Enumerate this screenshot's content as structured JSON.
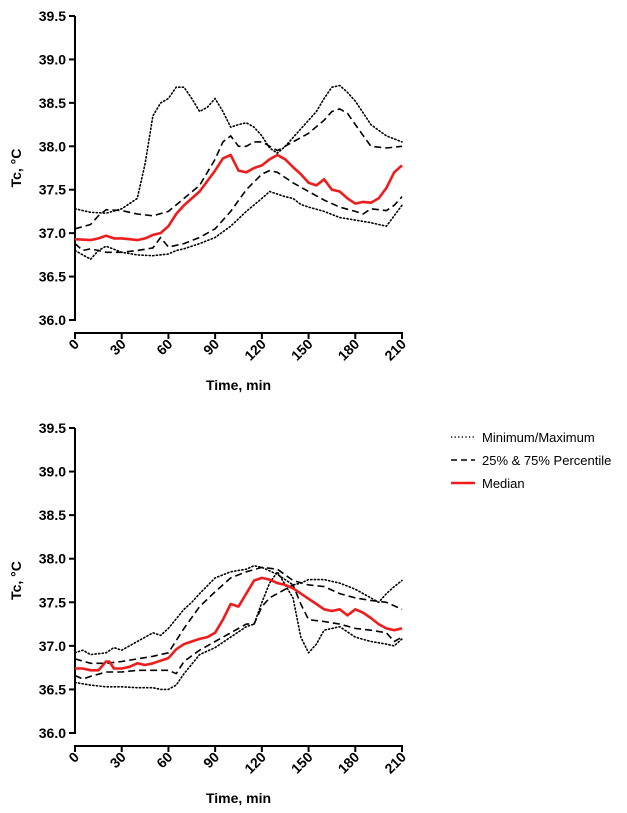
{
  "chart_data": [
    {
      "type": "line",
      "xlabel": "Time, min",
      "ylabel": "Tc, °C",
      "xlim": [
        0,
        210
      ],
      "ylim": [
        36.0,
        39.5
      ],
      "xticks": [
        "0",
        "30",
        "60",
        "90",
        "120",
        "150",
        "180",
        "210"
      ],
      "yticks": [
        "36.0",
        "36.5",
        "37.0",
        "37.5",
        "38.0",
        "38.5",
        "39.0",
        "39.5"
      ],
      "grid": false,
      "series": [
        {
          "style": "dotted",
          "color": "#000000",
          "x": [
            0,
            10,
            20,
            30,
            40,
            45,
            50,
            55,
            60,
            65,
            70,
            75,
            80,
            85,
            90,
            95,
            100,
            105,
            110,
            115,
            120,
            125,
            130,
            135,
            140,
            145,
            150,
            155,
            160,
            165,
            170,
            175,
            180,
            190,
            200,
            210
          ],
          "y": [
            37.28,
            37.24,
            37.23,
            37.28,
            37.4,
            37.8,
            38.35,
            38.5,
            38.55,
            38.68,
            38.68,
            38.55,
            38.4,
            38.45,
            38.55,
            38.4,
            38.22,
            38.25,
            38.27,
            38.22,
            38.12,
            37.98,
            37.92,
            38.0,
            38.1,
            38.2,
            38.3,
            38.4,
            38.55,
            38.68,
            38.7,
            38.62,
            38.52,
            38.25,
            38.12,
            38.05
          ]
        },
        {
          "style": "dotted",
          "color": "#000000",
          "x": [
            0,
            5,
            10,
            15,
            20,
            30,
            40,
            50,
            60,
            65,
            70,
            80,
            90,
            100,
            110,
            120,
            125,
            130,
            135,
            140,
            145,
            150,
            160,
            170,
            180,
            190,
            200,
            210
          ],
          "y": [
            36.8,
            36.75,
            36.7,
            36.8,
            36.85,
            36.78,
            36.75,
            36.74,
            36.76,
            36.8,
            36.82,
            36.88,
            36.95,
            37.08,
            37.25,
            37.4,
            37.48,
            37.45,
            37.42,
            37.4,
            37.33,
            37.3,
            37.25,
            37.18,
            37.15,
            37.12,
            37.08,
            37.32
          ]
        },
        {
          "style": "dashed",
          "color": "#000000",
          "x": [
            0,
            10,
            15,
            20,
            30,
            40,
            50,
            60,
            70,
            80,
            90,
            95,
            100,
            105,
            110,
            115,
            120,
            130,
            140,
            150,
            160,
            165,
            170,
            175,
            180,
            190,
            200,
            210
          ],
          "y": [
            37.05,
            37.1,
            37.2,
            37.27,
            37.26,
            37.22,
            37.2,
            37.25,
            37.4,
            37.55,
            37.85,
            38.05,
            38.12,
            38.0,
            38.0,
            38.05,
            38.05,
            37.95,
            38.05,
            38.15,
            38.3,
            38.4,
            38.43,
            38.38,
            38.25,
            38.0,
            37.98,
            38.0
          ]
        },
        {
          "style": "dashed",
          "color": "#000000",
          "x": [
            0,
            5,
            10,
            20,
            30,
            40,
            50,
            55,
            60,
            70,
            80,
            90,
            100,
            110,
            120,
            125,
            130,
            140,
            150,
            160,
            170,
            180,
            185,
            190,
            200,
            205,
            210
          ],
          "y": [
            36.88,
            36.8,
            36.82,
            36.78,
            36.78,
            36.8,
            36.83,
            36.95,
            36.84,
            36.88,
            36.95,
            37.05,
            37.25,
            37.5,
            37.68,
            37.72,
            37.7,
            37.58,
            37.48,
            37.38,
            37.3,
            37.25,
            37.22,
            37.28,
            37.26,
            37.32,
            37.42
          ]
        },
        {
          "style": "solid",
          "color": "#ee1d1d",
          "name": "Median",
          "x": [
            0,
            10,
            15,
            20,
            25,
            30,
            40,
            45,
            50,
            55,
            60,
            65,
            70,
            75,
            80,
            85,
            90,
            95,
            100,
            105,
            110,
            115,
            120,
            125,
            130,
            135,
            140,
            145,
            150,
            155,
            160,
            165,
            170,
            175,
            180,
            185,
            190,
            195,
            200,
            205,
            210
          ],
          "y": [
            36.93,
            36.92,
            36.94,
            36.97,
            36.94,
            36.94,
            36.92,
            36.94,
            36.98,
            37.0,
            37.08,
            37.22,
            37.32,
            37.4,
            37.48,
            37.6,
            37.72,
            37.86,
            37.9,
            37.72,
            37.7,
            37.75,
            37.78,
            37.85,
            37.9,
            37.85,
            37.76,
            37.68,
            37.58,
            37.55,
            37.62,
            37.5,
            37.48,
            37.4,
            37.34,
            37.36,
            37.35,
            37.4,
            37.52,
            37.7,
            37.78
          ]
        }
      ]
    },
    {
      "type": "line",
      "xlabel": "Time, min",
      "ylabel": "Tc, °C",
      "xlim": [
        0,
        210
      ],
      "ylim": [
        36.0,
        39.5
      ],
      "xticks": [
        "0",
        "30",
        "60",
        "90",
        "120",
        "150",
        "180",
        "210"
      ],
      "yticks": [
        "36.0",
        "36.5",
        "37.0",
        "37.5",
        "38.0",
        "38.5",
        "39.0",
        "39.5"
      ],
      "grid": false,
      "legend": {
        "position": "right",
        "entries": [
          {
            "label": "Minimum/Maximum",
            "style": "dotted",
            "color": "#000000"
          },
          {
            "label": "25% & 75% Percentile",
            "style": "dashed",
            "color": "#000000"
          },
          {
            "label": "Median",
            "style": "solid",
            "color": "#ee1d1d"
          }
        ]
      },
      "series": [
        {
          "style": "dotted",
          "color": "#000000",
          "x": [
            0,
            5,
            10,
            20,
            25,
            30,
            40,
            50,
            55,
            60,
            70,
            75,
            80,
            90,
            100,
            110,
            115,
            120,
            130,
            140,
            145,
            150,
            160,
            170,
            180,
            190,
            195,
            200,
            205,
            210
          ],
          "y": [
            36.92,
            36.95,
            36.9,
            36.92,
            36.98,
            36.95,
            37.05,
            37.15,
            37.12,
            37.2,
            37.42,
            37.5,
            37.6,
            37.78,
            37.85,
            37.88,
            37.92,
            37.9,
            37.82,
            37.7,
            37.72,
            37.76,
            37.76,
            37.72,
            37.65,
            37.55,
            37.5,
            37.6,
            37.68,
            37.75
          ]
        },
        {
          "style": "dotted",
          "color": "#000000",
          "x": [
            0,
            10,
            20,
            30,
            40,
            50,
            55,
            60,
            65,
            70,
            80,
            90,
            100,
            110,
            115,
            120,
            125,
            130,
            140,
            145,
            150,
            155,
            160,
            170,
            180,
            190,
            200,
            205,
            210
          ],
          "y": [
            36.58,
            36.55,
            36.53,
            36.53,
            36.52,
            36.52,
            36.5,
            36.5,
            36.55,
            36.68,
            36.9,
            36.98,
            37.1,
            37.22,
            37.25,
            37.5,
            37.72,
            37.85,
            37.55,
            37.1,
            36.92,
            37.02,
            37.18,
            37.22,
            37.1,
            37.05,
            37.02,
            37.0,
            37.08
          ]
        },
        {
          "style": "dashed",
          "color": "#000000",
          "x": [
            0,
            10,
            20,
            30,
            40,
            50,
            60,
            70,
            80,
            90,
            100,
            110,
            120,
            130,
            140,
            150,
            160,
            170,
            180,
            190,
            200,
            210
          ],
          "y": [
            36.85,
            36.8,
            36.8,
            36.82,
            36.85,
            36.88,
            36.92,
            37.2,
            37.45,
            37.62,
            37.78,
            37.85,
            37.9,
            37.88,
            37.75,
            37.7,
            37.68,
            37.6,
            37.55,
            37.52,
            37.5,
            37.42
          ]
        },
        {
          "style": "dashed",
          "color": "#000000",
          "x": [
            0,
            5,
            10,
            20,
            30,
            40,
            50,
            60,
            65,
            70,
            80,
            90,
            100,
            110,
            115,
            120,
            125,
            130,
            140,
            145,
            150,
            160,
            170,
            180,
            190,
            200,
            205,
            210
          ],
          "y": [
            36.66,
            36.62,
            36.65,
            36.7,
            36.7,
            36.72,
            36.72,
            36.72,
            36.68,
            36.82,
            36.95,
            37.05,
            37.15,
            37.25,
            37.25,
            37.45,
            37.55,
            37.6,
            37.7,
            37.48,
            37.3,
            37.28,
            37.25,
            37.2,
            37.18,
            37.15,
            37.05,
            37.1
          ]
        },
        {
          "style": "solid",
          "color": "#ee1d1d",
          "name": "Median",
          "x": [
            0,
            5,
            10,
            15,
            20,
            22,
            25,
            30,
            35,
            40,
            45,
            50,
            55,
            60,
            65,
            70,
            75,
            80,
            85,
            90,
            95,
            100,
            105,
            110,
            115,
            120,
            125,
            130,
            135,
            140,
            145,
            150,
            155,
            160,
            165,
            170,
            175,
            180,
            185,
            190,
            195,
            200,
            205,
            210
          ],
          "y": [
            36.74,
            36.74,
            36.72,
            36.72,
            36.82,
            36.82,
            36.74,
            36.74,
            36.76,
            36.8,
            36.78,
            36.8,
            36.83,
            36.86,
            36.96,
            37.02,
            37.05,
            37.08,
            37.1,
            37.15,
            37.3,
            37.48,
            37.45,
            37.6,
            37.75,
            37.78,
            37.76,
            37.72,
            37.7,
            37.66,
            37.6,
            37.54,
            37.48,
            37.42,
            37.4,
            37.42,
            37.35,
            37.42,
            37.38,
            37.32,
            37.25,
            37.2,
            37.18,
            37.2
          ]
        }
      ]
    }
  ]
}
